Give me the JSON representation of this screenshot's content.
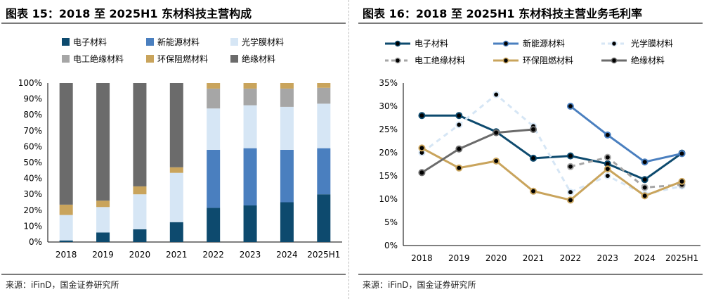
{
  "chart_data": [
    {
      "type": "bar",
      "stacked": true,
      "title": "图表 15：2018 至 2025H1 东材科技主营构成",
      "source": "来源：iFinD，国金证券研究所",
      "categories": [
        "2018",
        "2019",
        "2020",
        "2021",
        "2022",
        "2023",
        "2024",
        "2025H1"
      ],
      "yticks": [
        "0%",
        "10%",
        "20%",
        "30%",
        "40%",
        "50%",
        "60%",
        "70%",
        "80%",
        "90%",
        "100%"
      ],
      "ylim": [
        0,
        100
      ],
      "legend_position": "top",
      "series": [
        {
          "name": "电子材料",
          "color": "#0d4a6e",
          "values": [
            1,
            6,
            8,
            12.5,
            21.5,
            23,
            25,
            30
          ]
        },
        {
          "name": "新能源材料",
          "color": "#4a7fbf",
          "values": [
            0,
            0,
            0,
            0,
            36.5,
            36,
            33,
            29
          ]
        },
        {
          "name": "光学膜材料",
          "color": "#d6e6f5",
          "values": [
            16,
            16,
            22,
            31,
            26,
            27,
            27,
            28
          ]
        },
        {
          "name": "电工绝缘材料",
          "color": "#a6a6a6",
          "values": [
            0,
            0,
            0,
            0,
            12.5,
            10.5,
            11.5,
            10
          ]
        },
        {
          "name": "环保阻燃材料",
          "color": "#c9a45c",
          "values": [
            6.5,
            4,
            5,
            3.5,
            3.5,
            3.5,
            3.5,
            3
          ]
        },
        {
          "name": "绝缘材料",
          "color": "#6b6b6b",
          "values": [
            76.5,
            74,
            65,
            53,
            0,
            0,
            0,
            0
          ]
        }
      ]
    },
    {
      "type": "line",
      "title": "图表 16：2018 至 2025H1 东材科技主营业务毛利率",
      "source": "来源：iFinD，国金证券研究所",
      "categories": [
        "2018",
        "2019",
        "2020",
        "2021",
        "2022",
        "2023",
        "2024",
        "2025H1"
      ],
      "yticks": [
        "0%",
        "5%",
        "10%",
        "15%",
        "20%",
        "25%",
        "30%",
        "35%"
      ],
      "ylim": [
        0,
        35
      ],
      "legend_position": "top",
      "series": [
        {
          "name": "电子材料",
          "color": "#0d4a6e",
          "style": "solid",
          "values": [
            28,
            28,
            24.5,
            18.8,
            19.3,
            17.6,
            14.2,
            19.9
          ]
        },
        {
          "name": "新能源材料",
          "color": "#4a7fbf",
          "style": "solid",
          "values": [
            null,
            null,
            null,
            null,
            30,
            23.8,
            18,
            19.8
          ]
        },
        {
          "name": "光学膜材料",
          "color": "#d6e6f5",
          "style": "dashed",
          "values": [
            20,
            26,
            32.5,
            25.7,
            11.5,
            15,
            11,
            12.8
          ]
        },
        {
          "name": "电工绝缘材料",
          "color": "#a6a6a6",
          "style": "dashed",
          "values": [
            null,
            null,
            null,
            null,
            17,
            19,
            12.5,
            13.1
          ]
        },
        {
          "name": "环保阻燃材料",
          "color": "#c9a45c",
          "style": "solid",
          "values": [
            21,
            16.7,
            18.2,
            11.7,
            9.8,
            16.5,
            10.7,
            13.8
          ]
        },
        {
          "name": "绝缘材料",
          "color": "#6b6b6b",
          "style": "solid",
          "values": [
            15.7,
            20.8,
            24.3,
            25,
            null,
            null,
            null,
            null
          ]
        }
      ]
    }
  ]
}
